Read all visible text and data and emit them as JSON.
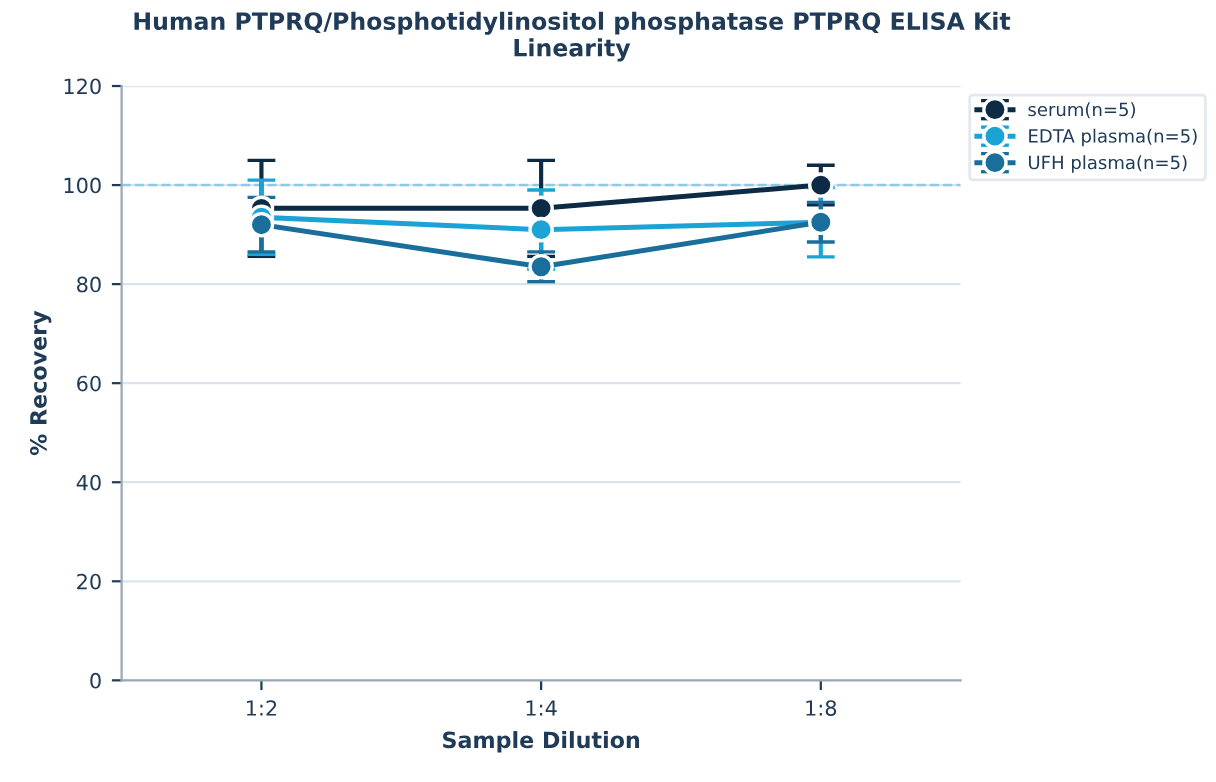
{
  "chart_data": {
    "type": "line",
    "title": "Human PTPRQ/Phosphotidylinositol phosphatase PTPRQ ELISA Kit\nLinearity",
    "xlabel": "Sample Dilution",
    "ylabel": "% Recovery",
    "categories": [
      "1:2",
      "1:4",
      "1:8"
    ],
    "series": [
      {
        "name": "serum(n=5)",
        "color": "#0d2b45",
        "values": [
          95.3,
          95.3,
          100
        ],
        "errors": [
          9.7,
          9.7,
          4
        ]
      },
      {
        "name": "EDTA plasma(n=5)",
        "color": "#1ba3d6",
        "values": [
          93.5,
          91,
          92.5
        ],
        "errors": [
          7.5,
          8,
          7
        ]
      },
      {
        "name": "UFH plasma(n=5)",
        "color": "#1a6e9c",
        "values": [
          92,
          83.5,
          92.5
        ],
        "errors": [
          5.5,
          3,
          4
        ]
      }
    ],
    "ylim": [
      0,
      120
    ],
    "yticks": [
      0,
      20,
      40,
      60,
      80,
      100,
      120
    ],
    "ref_lines": [
      {
        "axis": "y",
        "value": 100,
        "color": "#8ecae6",
        "line_style": "dashed"
      }
    ],
    "grid": "y",
    "legend": "top right",
    "marker": "circle",
    "line_style": "solid"
  }
}
